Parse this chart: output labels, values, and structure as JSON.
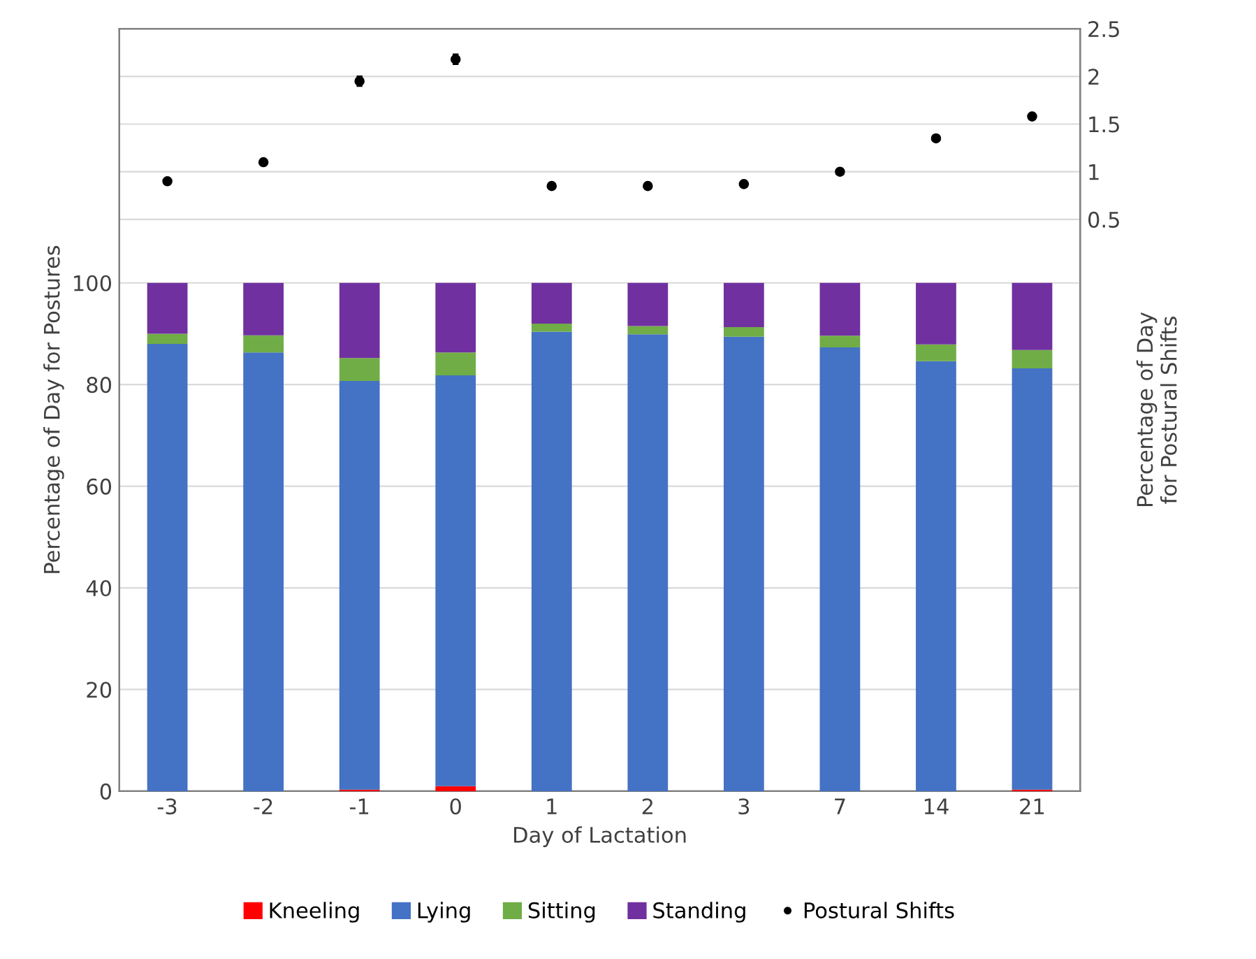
{
  "chart_data": {
    "type": "bar",
    "stacked": true,
    "xlabel": "Day of Lactation",
    "ylabel": "Percentage of Day for Postures",
    "y2label": "Percentage of Day\nfor Postural Shifts",
    "categories": [
      "-3",
      "-2",
      "-1",
      "0",
      "1",
      "2",
      "3",
      "7",
      "14",
      "21"
    ],
    "series": [
      {
        "name": "Kneeling",
        "color": "#ff0000",
        "values": [
          0,
          0,
          0.3,
          1.0,
          0,
          0,
          0,
          0,
          0,
          0.3
        ]
      },
      {
        "name": "Lying",
        "color": "#4472c4",
        "values": [
          88,
          86.3,
          80.4,
          80.8,
          90.4,
          89.9,
          89.4,
          87.3,
          84.6,
          82.9
        ]
      },
      {
        "name": "Sitting",
        "color": "#70ad47",
        "values": [
          2,
          3.4,
          4.5,
          4.5,
          1.6,
          1.6,
          1.9,
          2.3,
          3.3,
          3.6
        ]
      },
      {
        "name": "Standing",
        "color": "#7030a0",
        "values": [
          10,
          10.3,
          14.8,
          13.7,
          8,
          8.5,
          8.7,
          10.4,
          12.1,
          13.2
        ]
      },
      {
        "name": "Postural Shifts",
        "type": "scatter",
        "axis": "y2",
        "color": "#000000",
        "marker": "circle",
        "x": [
          "-3",
          "-2",
          "-1",
          "0",
          "1",
          "2",
          "3",
          "7",
          "14",
          "21"
        ],
        "values": [
          0.9,
          1.1,
          1.95,
          2.18,
          0.85,
          0.85,
          0.87,
          1.0,
          1.35,
          1.58
        ],
        "errors": [
          0.02,
          0.02,
          0.05,
          0.05,
          0.02,
          0.02,
          0.02,
          0.02,
          0.02,
          0.02
        ]
      }
    ],
    "ylim": [
      0,
      150
    ],
    "yticks": [
      0,
      20,
      40,
      60,
      80,
      100
    ],
    "y2lim": [
      -5.5,
      2.5
    ],
    "y2ticks": [
      0.5,
      1,
      1.5,
      2,
      2.5
    ],
    "grid": "y",
    "legend": "bottom"
  }
}
